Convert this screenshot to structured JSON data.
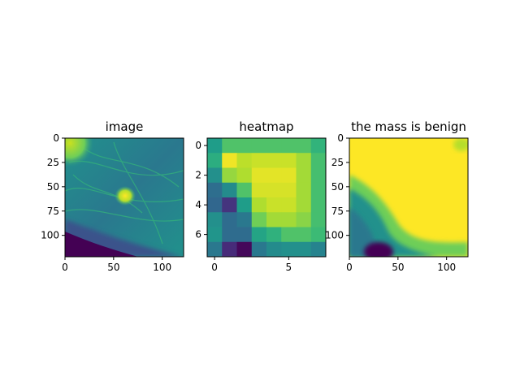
{
  "chart_data": [
    {
      "type": "heatmap",
      "title": "image",
      "colormap": "viridis",
      "extent": [
        0,
        122
      ],
      "xticks": [
        0,
        50,
        100
      ],
      "yticks": [
        0,
        25,
        50,
        75,
        100
      ]
    },
    {
      "type": "heatmap",
      "title": "heatmap",
      "colormap": "viridis",
      "extent": [
        0,
        8
      ],
      "xticks": [
        0,
        5
      ],
      "yticks": [
        0,
        2,
        4,
        6
      ],
      "values": [
        [
          0.55,
          0.72,
          0.72,
          0.72,
          0.72,
          0.72,
          0.72,
          0.65
        ],
        [
          0.62,
          0.98,
          0.9,
          0.92,
          0.92,
          0.92,
          0.86,
          0.7
        ],
        [
          0.5,
          0.84,
          0.88,
          0.96,
          0.96,
          0.96,
          0.86,
          0.7
        ],
        [
          0.36,
          0.48,
          0.72,
          0.94,
          0.94,
          0.94,
          0.86,
          0.7
        ],
        [
          0.33,
          0.15,
          0.55,
          0.88,
          0.92,
          0.92,
          0.86,
          0.7
        ],
        [
          0.5,
          0.35,
          0.4,
          0.78,
          0.86,
          0.86,
          0.82,
          0.7
        ],
        [
          0.52,
          0.35,
          0.35,
          0.58,
          0.64,
          0.72,
          0.72,
          0.68
        ],
        [
          0.4,
          0.12,
          0.02,
          0.4,
          0.48,
          0.5,
          0.5,
          0.45
        ]
      ]
    },
    {
      "type": "heatmap",
      "title": "the mass is benign",
      "colormap": "viridis",
      "extent": [
        0,
        122
      ],
      "xticks": [
        0,
        50,
        100
      ],
      "yticks": [
        0,
        25,
        50,
        75,
        100
      ]
    }
  ]
}
